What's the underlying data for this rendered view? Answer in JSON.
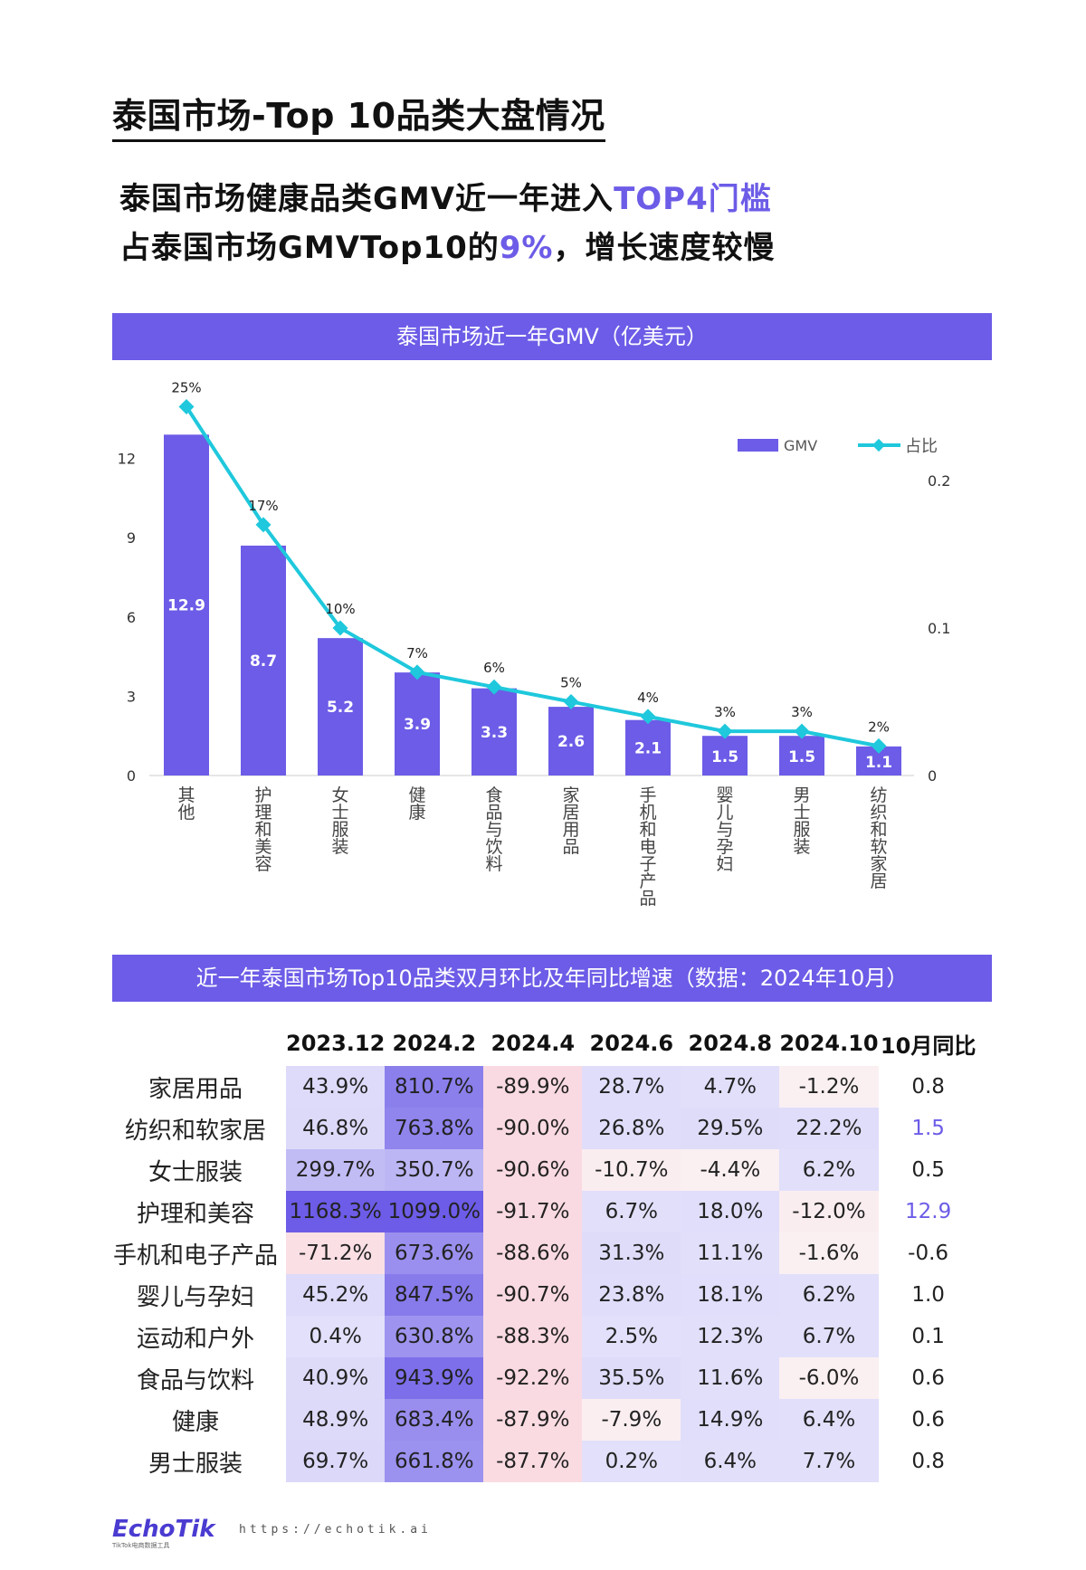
{
  "page_title": "泰国市场-Top 10品类大盘情况",
  "headline": {
    "line1_pre": "泰国市场健康品类GMV近一年进入",
    "line1_hl": "TOP4门槛",
    "line2_pre": "占泰国市场GMVTop10的",
    "line2_hl": "9%",
    "line2_post": "，增长速度较慢"
  },
  "colors": {
    "accent": "#6c5ce7",
    "line": "#1fc8dc",
    "neg": "#f8d7df"
  },
  "chart_data": {
    "type": "bar",
    "title": "泰国市场近一年GMV（亿美元）",
    "categories": [
      "其他",
      "护理和美容",
      "女士服装",
      "健康",
      "食品与饮料",
      "家居用品",
      "手机和电子产品",
      "婴儿与孕妇",
      "男士服装",
      "纺织和软家居"
    ],
    "series": [
      {
        "name": "GMV",
        "type": "bar",
        "axis": "left",
        "values": [
          12.9,
          8.7,
          5.2,
          3.9,
          3.3,
          2.6,
          2.1,
          1.5,
          1.5,
          1.1
        ]
      },
      {
        "name": "占比",
        "type": "line",
        "axis": "right",
        "values": [
          0.25,
          0.17,
          0.1,
          0.07,
          0.06,
          0.05,
          0.04,
          0.03,
          0.03,
          0.02
        ],
        "labels": [
          "25%",
          "17%",
          "10%",
          "7%",
          "6%",
          "5%",
          "4%",
          "3%",
          "3%",
          "2%"
        ]
      }
    ],
    "yticks_left": [
      "0",
      "3",
      "6",
      "9",
      "12"
    ],
    "yticks_right": [
      "0",
      "0.1",
      "0.2"
    ],
    "ylim_left": [
      0,
      12.9
    ],
    "ylim_right": [
      0,
      0.25
    ],
    "legend": [
      "GMV",
      "占比"
    ],
    "legend_position": "top-right",
    "grid": false
  },
  "table": {
    "title": "近一年泰国市场Top10品类双月环比及年同比增速（数据：2024年10月）",
    "headers": [
      "2023.12",
      "2024.2",
      "2024.4",
      "2024.6",
      "2024.8",
      "2024.10",
      "10月同比"
    ],
    "rows": [
      {
        "label": "家居用品",
        "values": [
          "43.9%",
          "810.7%",
          "-89.9%",
          "28.7%",
          "4.7%",
          "-1.2%"
        ],
        "yoy": "0.8"
      },
      {
        "label": "纺织和软家居",
        "values": [
          "46.8%",
          "763.8%",
          "-90.0%",
          "26.8%",
          "29.5%",
          "22.2%"
        ],
        "yoy": "1.5"
      },
      {
        "label": "女士服装",
        "values": [
          "299.7%",
          "350.7%",
          "-90.6%",
          "-10.7%",
          "-4.4%",
          "6.2%"
        ],
        "yoy": "0.5"
      },
      {
        "label": "护理和美容",
        "values": [
          "1168.3%",
          "1099.0%",
          "-91.7%",
          "6.7%",
          "18.0%",
          "-12.0%"
        ],
        "yoy": "12.9"
      },
      {
        "label": "手机和电子产品",
        "values": [
          "-71.2%",
          "673.6%",
          "-88.6%",
          "31.3%",
          "11.1%",
          "-1.6%"
        ],
        "yoy": "-0.6"
      },
      {
        "label": "婴儿与孕妇",
        "values": [
          "45.2%",
          "847.5%",
          "-90.7%",
          "23.8%",
          "18.1%",
          "6.2%"
        ],
        "yoy": "1.0"
      },
      {
        "label": "运动和户外",
        "values": [
          "0.4%",
          "630.8%",
          "-88.3%",
          "2.5%",
          "12.3%",
          "6.7%"
        ],
        "yoy": "0.1"
      },
      {
        "label": "食品与饮料",
        "values": [
          "40.9%",
          "943.9%",
          "-92.2%",
          "35.5%",
          "11.6%",
          "-6.0%"
        ],
        "yoy": "0.6"
      },
      {
        "label": "健康",
        "values": [
          "48.9%",
          "683.4%",
          "-87.9%",
          "-7.9%",
          "14.9%",
          "6.4%"
        ],
        "yoy": "0.6"
      },
      {
        "label": "男士服装",
        "values": [
          "69.7%",
          "661.8%",
          "-87.7%",
          "0.2%",
          "6.4%",
          "7.7%"
        ],
        "yoy": "0.8"
      }
    ]
  },
  "footer": {
    "logo": "EchoTik",
    "logo_sub": "TikTok电商数据工具",
    "url": "https://echotik.ai"
  }
}
